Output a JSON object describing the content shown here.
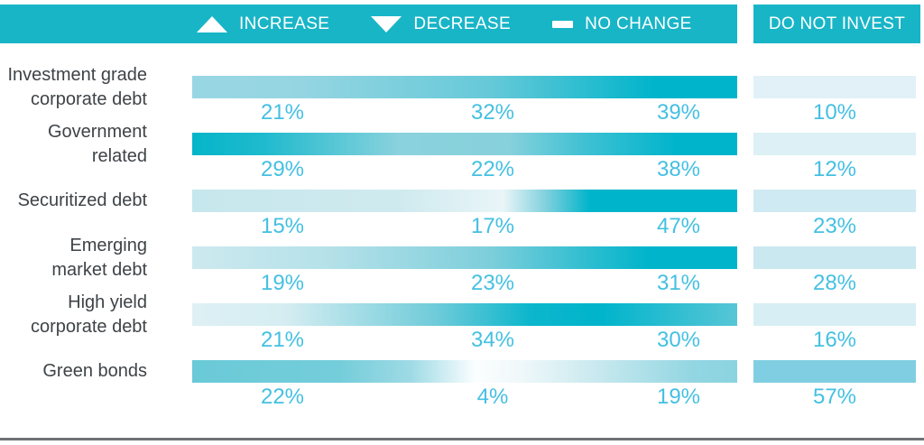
{
  "legend": {
    "items": [
      {
        "icon": "triangle-up-icon",
        "label": "INCREASE"
      },
      {
        "icon": "triangle-down-icon",
        "label": "DECREASE"
      },
      {
        "icon": "dash-icon",
        "label": "NO CHANGE"
      }
    ],
    "do_not_invest_label": "DO NOT INVEST"
  },
  "colors": {
    "header_teal": "#18b5c7",
    "bar_saturated": "#00b4cb",
    "percent_text": "#44c0e2",
    "category_text": "#3e4347",
    "bottom_rule": "#6f7377"
  },
  "rows": [
    {
      "label": "Investment grade\ncorporate debt",
      "increase_label": "21%",
      "decrease_label": "32%",
      "no_change_label": "39%",
      "dni_label": "10%",
      "gradient": [
        [
          0,
          "#99d6e3"
        ],
        [
          20,
          "#95d5e2"
        ],
        [
          55,
          "#65c9d8"
        ],
        [
          85,
          "#00b4cb"
        ],
        [
          100,
          "#00b4cb"
        ]
      ],
      "dni_color": "#e1f1f7"
    },
    {
      "label": "Government\nrelated",
      "increase_label": "29%",
      "decrease_label": "22%",
      "no_change_label": "38%",
      "dni_label": "12%",
      "gradient": [
        [
          0,
          "#05b5c9"
        ],
        [
          13,
          "#1fbacd"
        ],
        [
          38,
          "#8ad2dd"
        ],
        [
          58,
          "#87d1dc"
        ],
        [
          72,
          "#3fc1d3"
        ],
        [
          89,
          "#00b4cb"
        ],
        [
          100,
          "#00b4cb"
        ]
      ],
      "dni_color": "#dcf0f5"
    },
    {
      "label": "Securitized debt",
      "increase_label": "15%",
      "decrease_label": "17%",
      "no_change_label": "47%",
      "dni_label": "23%",
      "gradient": [
        [
          0,
          "#c6e7ed"
        ],
        [
          38,
          "#cfeaef"
        ],
        [
          57,
          "#e9f5f8"
        ],
        [
          65,
          "#7fd0dd"
        ],
        [
          73,
          "#00b4cb"
        ],
        [
          100,
          "#00b4cb"
        ]
      ],
      "dni_color": "#cfeaf2"
    },
    {
      "label": "Emerging\nmarket debt",
      "increase_label": "19%",
      "decrease_label": "23%",
      "no_change_label": "31%",
      "dni_label": "28%",
      "gradient": [
        [
          0,
          "#cde9ef"
        ],
        [
          25,
          "#b5e1e9"
        ],
        [
          55,
          "#7ccedb"
        ],
        [
          73,
          "#2cbdd0"
        ],
        [
          84,
          "#00b4cb"
        ],
        [
          100,
          "#00b4cb"
        ]
      ],
      "dni_color": "#c9e8f0"
    },
    {
      "label": "High yield\ncorporate debt",
      "increase_label": "21%",
      "decrease_label": "34%",
      "no_change_label": "30%",
      "dni_label": "16%",
      "gradient": [
        [
          0,
          "#def0f4"
        ],
        [
          17,
          "#d5edf2"
        ],
        [
          45,
          "#6ecbd9"
        ],
        [
          62,
          "#0cb6cc"
        ],
        [
          75,
          "#00b4cb"
        ],
        [
          100,
          "#57c6d6"
        ]
      ],
      "dni_color": "#d7eef4"
    },
    {
      "label": "Green bonds",
      "increase_label": "22%",
      "decrease_label": "4%",
      "no_change_label": "19%",
      "dni_label": "57%",
      "gradient": [
        [
          0,
          "#6acad7"
        ],
        [
          27,
          "#74cdda"
        ],
        [
          40,
          "#9edae5"
        ],
        [
          52,
          "#fbfeff"
        ],
        [
          60,
          "#f0f8fa"
        ],
        [
          75,
          "#c6e8ee"
        ],
        [
          92,
          "#92d6e2"
        ],
        [
          100,
          "#8bd3e0"
        ]
      ],
      "dni_color": "#80cee1"
    }
  ],
  "chart_data": {
    "type": "heatmap",
    "categories": [
      "Investment grade corporate debt",
      "Government related",
      "Securitized debt",
      "Emerging market debt",
      "High yield corporate debt",
      "Green bonds"
    ],
    "series": [
      {
        "name": "Increase",
        "values": [
          21,
          29,
          15,
          19,
          21,
          22
        ]
      },
      {
        "name": "Decrease",
        "values": [
          32,
          22,
          17,
          23,
          34,
          4
        ]
      },
      {
        "name": "No change",
        "values": [
          39,
          38,
          47,
          31,
          30,
          19
        ]
      },
      {
        "name": "Do not invest",
        "values": [
          10,
          12,
          23,
          28,
          16,
          57
        ]
      }
    ],
    "unit": "%",
    "palette": {
      "low": "#ffffff",
      "high": "#00b4cb"
    },
    "legend_position": "top",
    "grid": false
  }
}
